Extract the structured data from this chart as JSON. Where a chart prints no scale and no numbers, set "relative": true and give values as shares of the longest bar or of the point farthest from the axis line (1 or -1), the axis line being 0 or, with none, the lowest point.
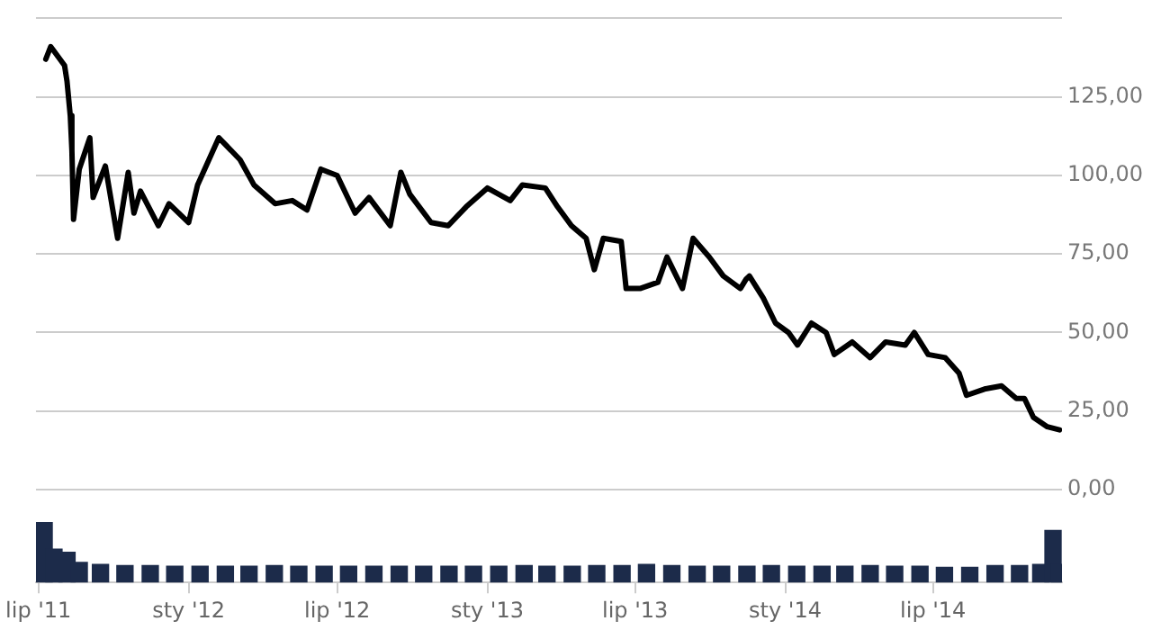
{
  "chart_data": [
    {
      "type": "line",
      "color": "#000000",
      "x": [
        "2011-07-10",
        "2011-07-16",
        "2011-08-02",
        "2011-08-05",
        "2011-08-09",
        "2011-08-11",
        "2011-08-13",
        "2011-08-20",
        "2011-09-02",
        "2011-09-06",
        "2011-09-21",
        "2011-10-06",
        "2011-10-19",
        "2011-10-26",
        "2011-11-03",
        "2011-11-25",
        "2011-12-08",
        "2012-01-01",
        "2012-01-12",
        "2012-02-07",
        "2012-03-04",
        "2012-03-21",
        "2012-04-16",
        "2012-05-07",
        "2012-05-25",
        "2012-06-11",
        "2012-07-01",
        "2012-07-23",
        "2012-08-09",
        "2012-09-04",
        "2012-09-17",
        "2012-09-28",
        "2012-10-24",
        "2012-11-14",
        "2012-12-06",
        "2013-01-01",
        "2013-01-29",
        "2013-02-13",
        "2013-03-13",
        "2013-03-28",
        "2013-04-14",
        "2013-05-02",
        "2013-05-12",
        "2013-05-23",
        "2013-06-14",
        "2013-06-20",
        "2013-07-07",
        "2013-07-29",
        "2013-08-09",
        "2013-08-28",
        "2013-09-10",
        "2013-09-30",
        "2013-10-17",
        "2013-11-07",
        "2013-11-14",
        "2013-11-18",
        "2013-12-05",
        "2013-12-20",
        "2014-01-05",
        "2014-01-16",
        "2014-02-02",
        "2014-02-20",
        "2014-03-02",
        "2014-03-24",
        "2014-04-15",
        "2014-05-04",
        "2014-05-28",
        "2014-06-08",
        "2014-06-25",
        "2014-07-16",
        "2014-08-02",
        "2014-08-11",
        "2014-09-02",
        "2014-09-23",
        "2014-10-11",
        "2014-10-21",
        "2014-11-01",
        "2014-11-18",
        "2014-12-03"
      ],
      "values": [
        137,
        141,
        135,
        130,
        119,
        108,
        86,
        102,
        112,
        93,
        103,
        80,
        101,
        88,
        95,
        84,
        91,
        85,
        97,
        112,
        105,
        97,
        91,
        92,
        89,
        102,
        100,
        88,
        93,
        84,
        101,
        94,
        85,
        84,
        90,
        96,
        92,
        97,
        96,
        90,
        84,
        80,
        70,
        80,
        79,
        64,
        64,
        66,
        74,
        64,
        80,
        74,
        68,
        64,
        67,
        68,
        61,
        53,
        50,
        46,
        53,
        50,
        43,
        47,
        42,
        47,
        46,
        50,
        43,
        42,
        37,
        30,
        32,
        33,
        29,
        29,
        23,
        20,
        19
      ],
      "ylim": [
        0,
        150
      ],
      "yticks": [
        {
          "value": 0,
          "label": "0,00"
        },
        {
          "value": 25,
          "label": "25,00"
        },
        {
          "value": 50,
          "label": "50,00"
        },
        {
          "value": 75,
          "label": "75,00"
        },
        {
          "value": 100,
          "label": "100,00"
        },
        {
          "value": 125,
          "label": "125,00"
        },
        {
          "value": 150,
          "label": null
        }
      ],
      "xlim": [
        "2011-06-28",
        "2014-12-06"
      ],
      "grid": "y",
      "tick_labels": "y"
    },
    {
      "type": "bar",
      "relative": true,
      "color": "#1c2b4a",
      "x": [
        "2011-07-08",
        "2011-07-20",
        "2011-08-05",
        "2011-08-20",
        "2011-09-15",
        "2011-10-15",
        "2011-11-15",
        "2011-12-15",
        "2012-01-15",
        "2012-02-15",
        "2012-03-15",
        "2012-04-15",
        "2012-05-15",
        "2012-06-15",
        "2012-07-15",
        "2012-08-15",
        "2012-09-15",
        "2012-10-15",
        "2012-11-15",
        "2012-12-15",
        "2013-01-15",
        "2013-02-15",
        "2013-03-15",
        "2013-04-15",
        "2013-05-15",
        "2013-06-15",
        "2013-07-15",
        "2013-08-15",
        "2013-09-15",
        "2013-10-15",
        "2013-11-15",
        "2013-12-15",
        "2014-01-15",
        "2014-02-15",
        "2014-03-15",
        "2014-04-15",
        "2014-05-15",
        "2014-06-15",
        "2014-07-15",
        "2014-08-15",
        "2014-09-15",
        "2014-10-15",
        "2014-11-10",
        "2014-11-25",
        "2014-12-03"
      ],
      "values": [
        1,
        0.55,
        0.5,
        0.33,
        0.3,
        0.28,
        0.28,
        0.27,
        0.27,
        0.27,
        0.27,
        0.28,
        0.27,
        0.27,
        0.27,
        0.27,
        0.27,
        0.27,
        0.27,
        0.27,
        0.27,
        0.28,
        0.27,
        0.27,
        0.28,
        0.28,
        0.3,
        0.28,
        0.27,
        0.27,
        0.27,
        0.28,
        0.27,
        0.27,
        0.27,
        0.28,
        0.27,
        0.27,
        0.25,
        0.25,
        0.28,
        0.28,
        0.3,
        0.86,
        0.3
      ],
      "xlim": [
        "2011-06-28",
        "2014-12-06"
      ],
      "xticks": [
        {
          "value": "2011-07-01",
          "label": "lip '11"
        },
        {
          "value": "2012-01-01",
          "label": "sty '12"
        },
        {
          "value": "2012-07-01",
          "label": "lip '12"
        },
        {
          "value": "2013-01-01",
          "label": "sty '13"
        },
        {
          "value": "2013-07-01",
          "label": "lip '13"
        },
        {
          "value": "2014-01-01",
          "label": "sty '14"
        },
        {
          "value": "2014-07-01",
          "label": "lip '14"
        }
      ],
      "tick_labels": "x"
    }
  ]
}
